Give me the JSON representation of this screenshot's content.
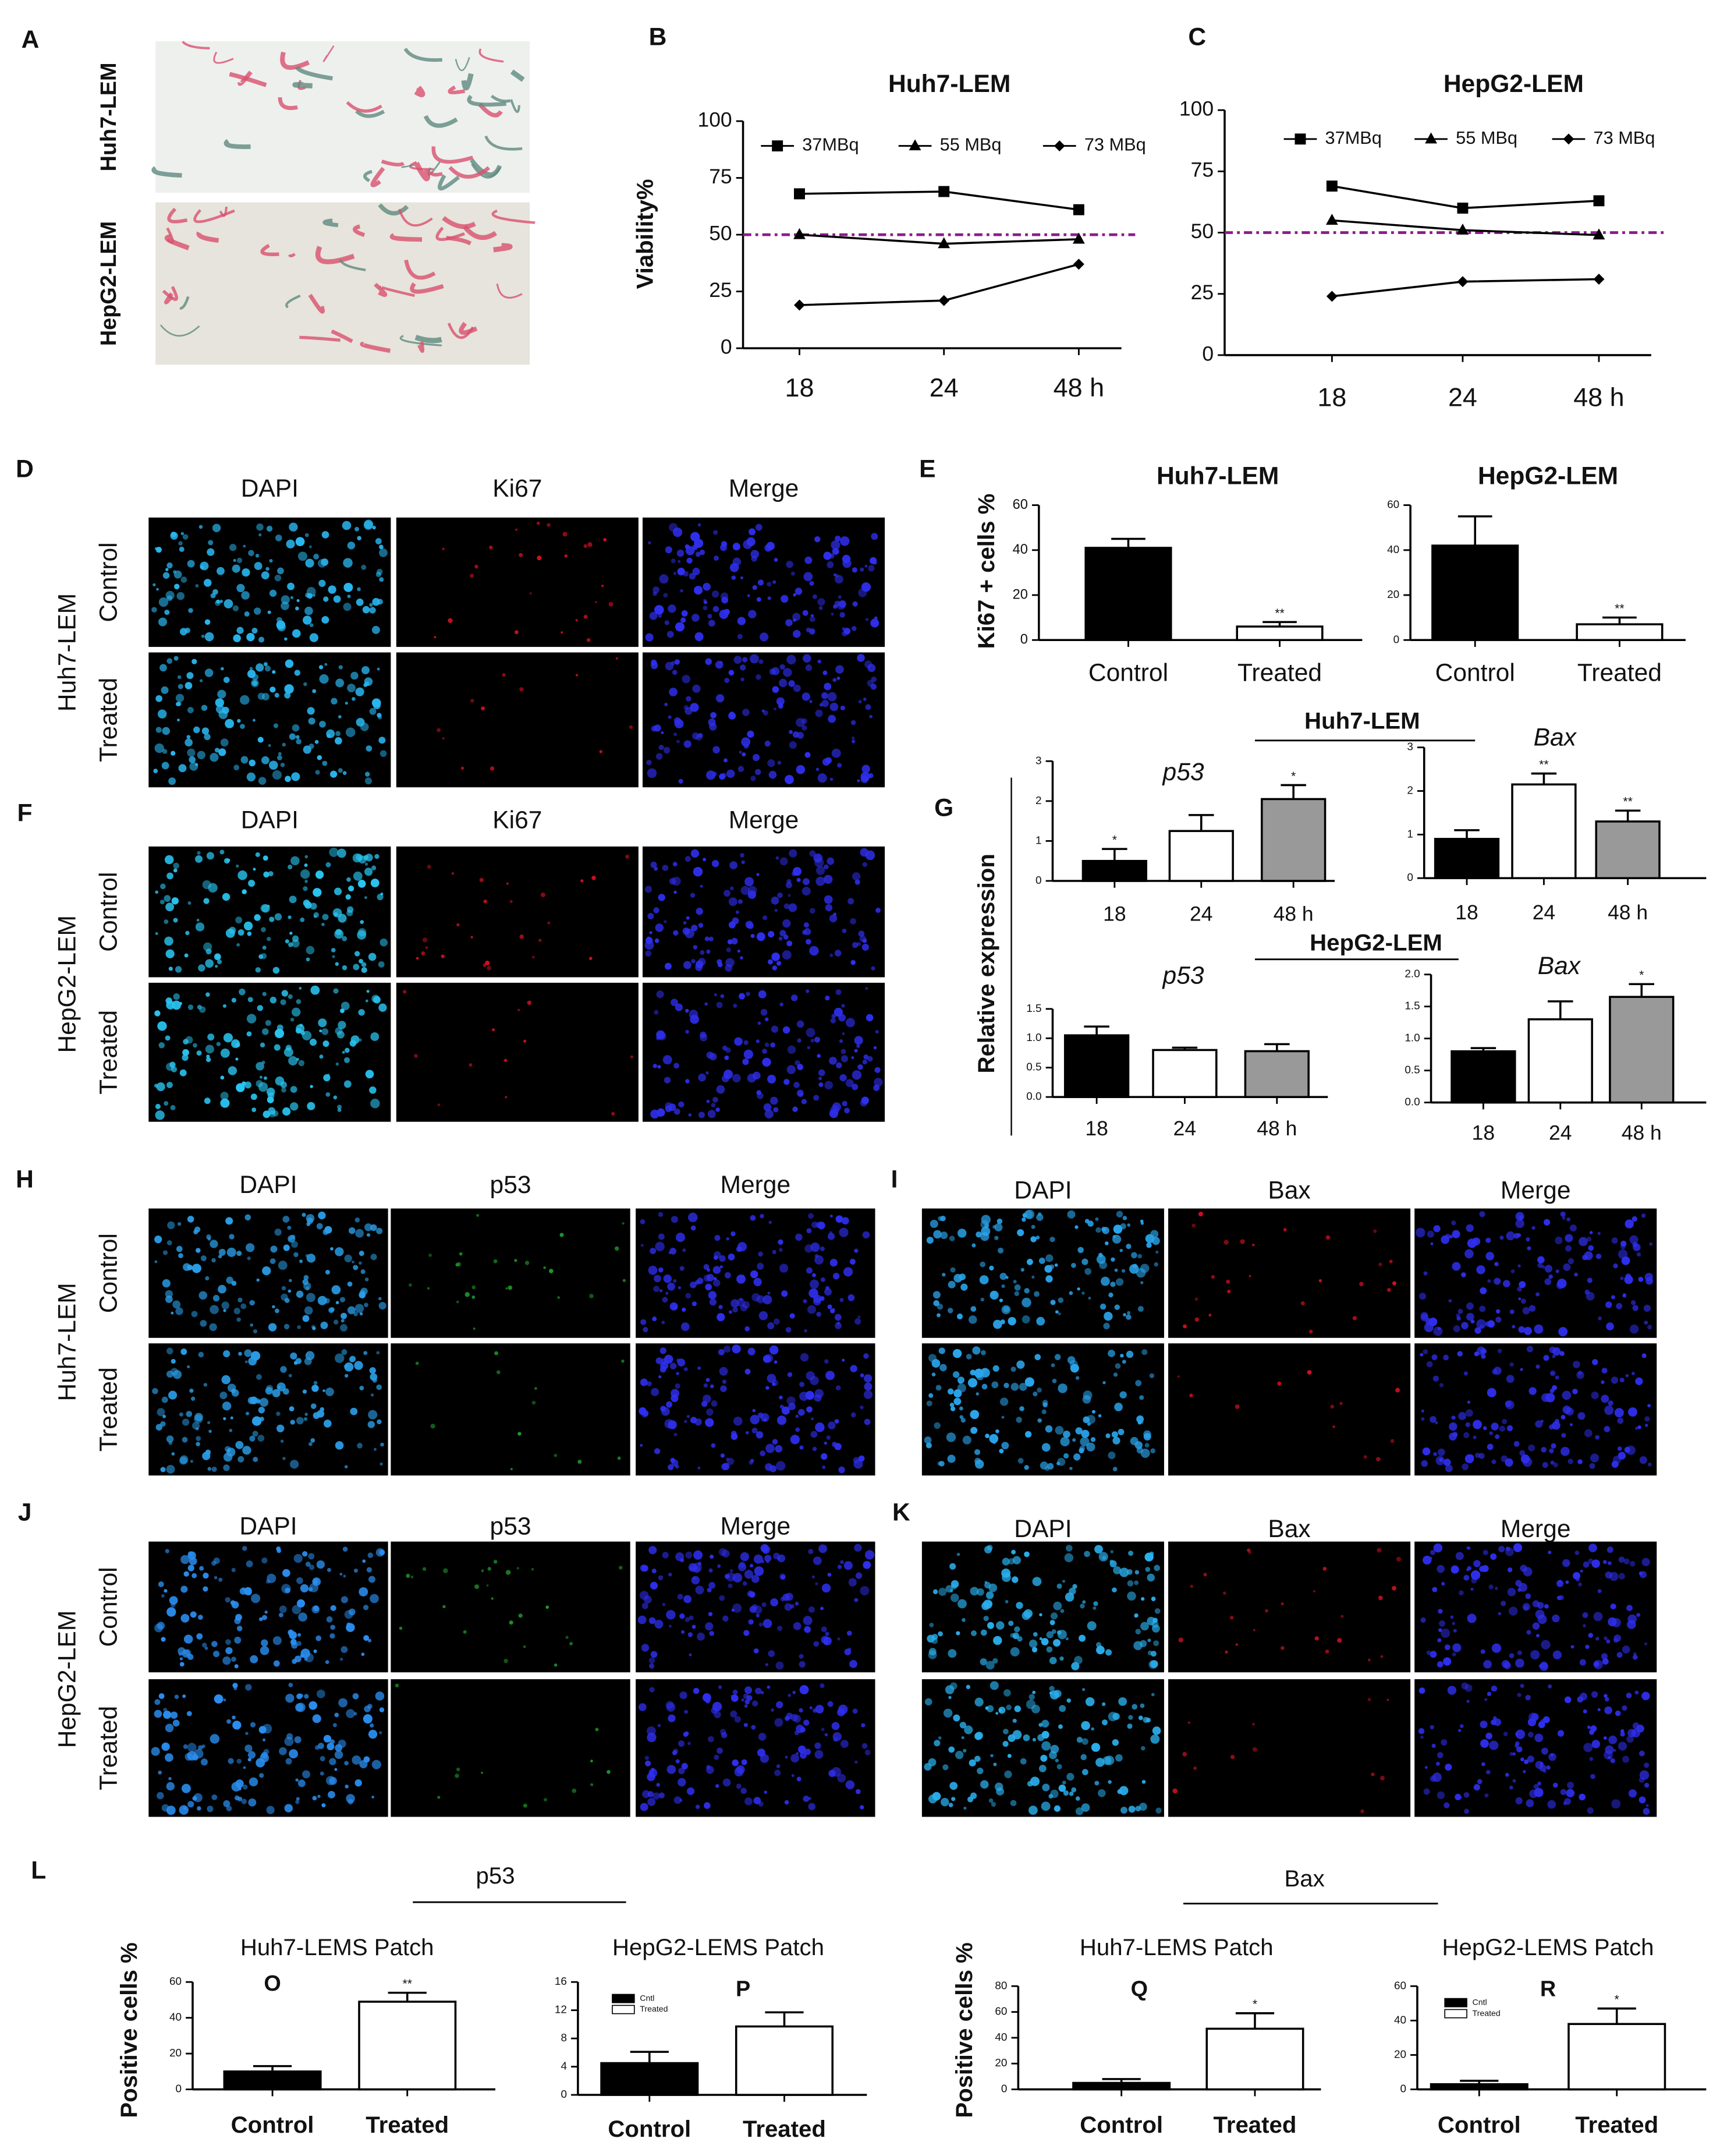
{
  "image_panels": [
    {
      "panel": "A",
      "row_labels": [
        "Huh7-LEM",
        "HepG2-LEM"
      ]
    },
    {
      "panel": "D",
      "side_label": "Huh7-LEM",
      "columns": [
        "DAPI",
        "Ki67",
        "Merge"
      ],
      "rows": [
        "Control",
        "Treated"
      ],
      "channel_colors": [
        "#29b6f0",
        "#d01020",
        "#2f2ff0"
      ]
    },
    {
      "panel": "F",
      "side_label": "HepG2-LEM",
      "columns": [
        "DAPI",
        "Ki67",
        "Merge"
      ],
      "rows": [
        "Control",
        "Treated"
      ],
      "channel_colors": [
        "#29c4f0",
        "#d01020",
        "#2f2ff0"
      ]
    },
    {
      "panel": "H",
      "side_label": "Huh7-LEM",
      "columns": [
        "DAPI",
        "p53",
        "Merge"
      ],
      "rows": [
        "Control",
        "Treated"
      ],
      "channel_colors": [
        "#2a9ee8",
        "#1f9a2a",
        "#2f2ff0"
      ]
    },
    {
      "panel": "I",
      "columns": [
        "DAPI",
        "Bax",
        "Merge"
      ],
      "channel_colors": [
        "#2aa6ee",
        "#d01020",
        "#2f2ff0"
      ]
    },
    {
      "panel": "J",
      "side_label": "HepG2-LEM",
      "columns": [
        "DAPI",
        "p53",
        "Merge"
      ],
      "rows": [
        "Control",
        "Treated"
      ],
      "channel_colors": [
        "#2a8ef0",
        "#1f9a2a",
        "#2f2ff0"
      ]
    },
    {
      "panel": "K",
      "columns": [
        "DAPI",
        "Bax",
        "Merge"
      ],
      "channel_colors": [
        "#2ab0ee",
        "#c01020",
        "#2f2ff0"
      ]
    }
  ],
  "chart_data": [
    {
      "type": "line",
      "panel": "B",
      "title": "Huh7-LEM",
      "y_label": "Viability%",
      "categories": [
        "18",
        "24",
        "48 h"
      ],
      "series": [
        {
          "name": "37MBq",
          "color": "#000000",
          "marker": "square",
          "values": [
            68,
            69,
            61
          ]
        },
        {
          "name": "55 MBq",
          "color": "#000000",
          "marker": "triangle",
          "values": [
            50,
            46,
            48
          ]
        },
        {
          "name": "73 MBq",
          "color": "#000000",
          "marker": "diamond",
          "values": [
            19,
            21,
            37
          ]
        }
      ],
      "ylim": [
        0,
        100
      ],
      "yticks": [
        0,
        25,
        50,
        75,
        100
      ],
      "reference_line": 50,
      "reference_color": "#8b1a8b"
    },
    {
      "type": "line",
      "panel": "C",
      "title": "HepG2-LEM",
      "categories": [
        "18",
        "24",
        "48 h"
      ],
      "series": [
        {
          "name": "37MBq",
          "color": "#000000",
          "marker": "square",
          "values": [
            69,
            60,
            63
          ]
        },
        {
          "name": "55 MBq",
          "color": "#000000",
          "marker": "triangle",
          "values": [
            55,
            51,
            49
          ]
        },
        {
          "name": "73 MBq",
          "color": "#000000",
          "marker": "diamond",
          "values": [
            24,
            30,
            31
          ]
        }
      ],
      "ylim": [
        0,
        100
      ],
      "yticks": [
        0,
        25,
        50,
        75,
        100
      ],
      "reference_line": 50,
      "reference_color": "#8b1a8b"
    },
    {
      "type": "bar",
      "panel": "E",
      "title": "Huh7-LEM",
      "y_label": "Ki67 + cells %",
      "categories": [
        "Control",
        "Treated"
      ],
      "values": [
        41,
        6
      ],
      "errors": [
        4,
        2
      ],
      "colors": [
        "#000000",
        "#ffffff"
      ],
      "significance": [
        null,
        "**"
      ],
      "ylim": [
        0,
        60
      ],
      "yticks": [
        0,
        20,
        40,
        60
      ]
    },
    {
      "type": "bar",
      "title": "HepG2-LEM",
      "categories": [
        "Control",
        "Treated"
      ],
      "values": [
        42,
        7
      ],
      "errors": [
        13,
        3
      ],
      "colors": [
        "#000000",
        "#ffffff"
      ],
      "significance": [
        null,
        "**"
      ],
      "ylim": [
        0,
        60
      ],
      "yticks": [
        0,
        20,
        40,
        60
      ]
    },
    {
      "type": "bar",
      "title": "p53",
      "categories": [
        "18",
        "24",
        "48 h"
      ],
      "values": [
        0.5,
        1.25,
        2.05
      ],
      "errors": [
        0.3,
        0.4,
        0.35
      ],
      "colors": [
        "#000000",
        "#ffffff",
        "#999999"
      ],
      "significance": [
        "*",
        null,
        "*"
      ],
      "ylim": [
        0,
        3
      ],
      "yticks": [
        0,
        1,
        2,
        3
      ]
    },
    {
      "type": "bar",
      "title": "Bax",
      "categories": [
        "18",
        "24",
        "48 h"
      ],
      "values": [
        0.9,
        2.15,
        1.3
      ],
      "errors": [
        0.2,
        0.25,
        0.25
      ],
      "colors": [
        "#000000",
        "#ffffff",
        "#999999"
      ],
      "significance": [
        null,
        "**",
        "**"
      ],
      "ylim": [
        0,
        3
      ],
      "yticks": [
        0,
        1,
        2,
        3
      ]
    },
    {
      "type": "bar",
      "title": "p53",
      "categories": [
        "18",
        "24",
        "48 h"
      ],
      "values": [
        1.05,
        0.8,
        0.78
      ],
      "errors": [
        0.15,
        0.04,
        0.12
      ],
      "colors": [
        "#000000",
        "#ffffff",
        "#999999"
      ],
      "ylim": [
        0,
        1.5
      ],
      "yticks": [
        {
          "value": 0,
          "label": "0.0"
        },
        {
          "value": 0.5,
          "label": "0.5"
        },
        {
          "value": 1,
          "label": "1.0"
        },
        {
          "value": 1.5,
          "label": "1.5"
        }
      ]
    },
    {
      "type": "bar",
      "title": "Bax",
      "categories": [
        "18",
        "24",
        "48 h"
      ],
      "values": [
        0.8,
        1.3,
        1.65
      ],
      "errors": [
        0.05,
        0.28,
        0.2
      ],
      "colors": [
        "#000000",
        "#ffffff",
        "#999999"
      ],
      "significance": [
        null,
        null,
        "*"
      ],
      "ylim": [
        0,
        2
      ],
      "yticks": [
        {
          "value": 0,
          "label": "0.0"
        },
        {
          "value": 0.5,
          "label": "0.5"
        },
        {
          "value": 1,
          "label": "1.0"
        },
        {
          "value": 1.5,
          "label": "1.5"
        },
        {
          "value": 2,
          "label": "2.0"
        }
      ]
    },
    {
      "type": "bar",
      "title": "Huh7-LEMS Patch",
      "inset_label": "O",
      "y_label": "Positive cells %",
      "categories": [
        "Control",
        "Treated"
      ],
      "values": [
        10,
        49
      ],
      "errors": [
        3,
        5
      ],
      "colors": [
        "#000000",
        "#ffffff"
      ],
      "significance": [
        null,
        "**"
      ],
      "ylim": [
        0,
        60
      ],
      "yticks": [
        0,
        20,
        40,
        60
      ]
    },
    {
      "type": "bar",
      "title": "HepG2-LEMS Patch",
      "inset_label": "P",
      "legend": [
        "Cntl",
        "Treated"
      ],
      "categories": [
        "Control",
        "Treated"
      ],
      "values": [
        4.5,
        9.7
      ],
      "errors": [
        1.6,
        2
      ],
      "colors": [
        "#000000",
        "#ffffff"
      ],
      "ylim": [
        0,
        16
      ],
      "yticks": [
        0,
        4,
        8,
        12,
        16
      ]
    },
    {
      "type": "bar",
      "title": "Huh7-LEMS Patch",
      "inset_label": "Q",
      "y_label": "Positive cells %",
      "categories": [
        "Control",
        "Treated"
      ],
      "values": [
        5,
        47
      ],
      "errors": [
        3,
        12
      ],
      "colors": [
        "#000000",
        "#ffffff"
      ],
      "significance": [
        null,
        "*"
      ],
      "ylim": [
        0,
        80
      ],
      "yticks": [
        0,
        20,
        40,
        60,
        80
      ]
    },
    {
      "type": "bar",
      "title": "HepG2-LEMS Patch",
      "inset_label": "R",
      "legend": [
        "Cntl",
        "Treated"
      ],
      "categories": [
        "Control",
        "Treated"
      ],
      "values": [
        3,
        38
      ],
      "errors": [
        2,
        9
      ],
      "colors": [
        "#000000",
        "#ffffff"
      ],
      "significance": [
        null,
        "*"
      ],
      "ylim": [
        0,
        60
      ],
      "yticks": [
        0,
        20,
        40,
        60
      ]
    }
  ],
  "group_labels": [
    {
      "panel": "G",
      "y_label": "Relative expression",
      "headers": [
        "Huh7-LEM",
        "HepG2-LEM"
      ]
    },
    {
      "panel": "L",
      "headers": [
        "p53",
        "Bax"
      ]
    }
  ]
}
